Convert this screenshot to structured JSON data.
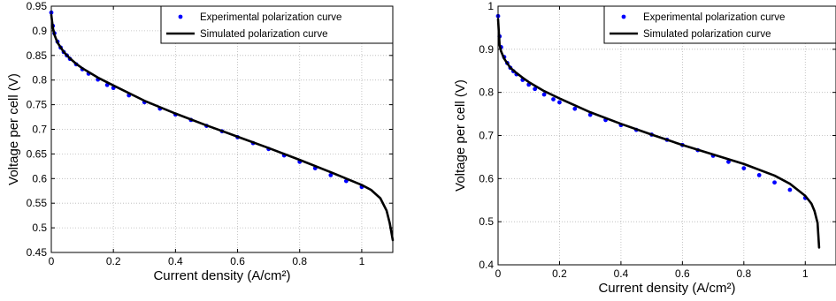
{
  "chart_data": [
    {
      "type": "line",
      "xlabel": "Current density (A/cm²)",
      "ylabel": "Voltage per cell (V)",
      "xlim": [
        0,
        1.1
      ],
      "ylim": [
        0.45,
        0.95
      ],
      "x_ticks": [
        0,
        0.2,
        0.4,
        0.6,
        0.8,
        1
      ],
      "x_tick_labels": [
        "0",
        "0.2",
        "0.4",
        "0.6",
        "0.8",
        "1"
      ],
      "y_ticks": [
        0.45,
        0.5,
        0.55,
        0.6,
        0.65,
        0.7,
        0.75,
        0.8,
        0.85,
        0.9,
        0.95
      ],
      "y_tick_labels": [
        "0.45",
        "0.5",
        "0.55",
        "0.6",
        "0.65",
        "0.7",
        "0.75",
        "0.8",
        "0.85",
        "0.9",
        "0.95"
      ],
      "grid": true,
      "legend_position": "top-right",
      "series": [
        {
          "name": "Experimental polarization curve",
          "style": "markers",
          "color": "#0000ff",
          "x": [
            0,
            0.005,
            0.01,
            0.02,
            0.03,
            0.04,
            0.05,
            0.06,
            0.08,
            0.1,
            0.12,
            0.15,
            0.18,
            0.2,
            0.25,
            0.3,
            0.35,
            0.4,
            0.45,
            0.5,
            0.55,
            0.6,
            0.65,
            0.7,
            0.75,
            0.8,
            0.85,
            0.9,
            0.95,
            1.0
          ],
          "y": [
            0.937,
            0.91,
            0.895,
            0.878,
            0.866,
            0.857,
            0.85,
            0.843,
            0.832,
            0.822,
            0.813,
            0.801,
            0.79,
            0.784,
            0.769,
            0.755,
            0.742,
            0.73,
            0.719,
            0.707,
            0.696,
            0.684,
            0.672,
            0.66,
            0.647,
            0.634,
            0.621,
            0.607,
            0.595,
            0.583
          ]
        },
        {
          "name": "Simulated polarization curve",
          "style": "line",
          "color": "#000000",
          "x": [
            0,
            0.005,
            0.01,
            0.02,
            0.04,
            0.06,
            0.08,
            0.1,
            0.15,
            0.2,
            0.3,
            0.4,
            0.5,
            0.6,
            0.7,
            0.8,
            0.9,
            0.95,
            1.0,
            1.03,
            1.06,
            1.08,
            1.09,
            1.1
          ],
          "y": [
            0.932,
            0.906,
            0.892,
            0.876,
            0.857,
            0.844,
            0.833,
            0.824,
            0.805,
            0.789,
            0.758,
            0.732,
            0.708,
            0.685,
            0.662,
            0.638,
            0.613,
            0.6,
            0.587,
            0.577,
            0.56,
            0.535,
            0.51,
            0.475
          ]
        }
      ]
    },
    {
      "type": "line",
      "xlabel": "Current density (A/cm²)",
      "ylabel": "Voltage per cell (V)",
      "xlim": [
        0,
        1.1
      ],
      "ylim": [
        0.4,
        1.0
      ],
      "x_ticks": [
        0,
        0.2,
        0.4,
        0.6,
        0.8,
        1
      ],
      "x_tick_labels": [
        "0",
        "0.2",
        "0.4",
        "0.6",
        "0.8",
        "1"
      ],
      "y_ticks": [
        0.4,
        0.5,
        0.6,
        0.7,
        0.8,
        0.9,
        1.0
      ],
      "y_tick_labels": [
        "0.4",
        "0.5",
        "0.6",
        "0.7",
        "0.8",
        "0.9",
        "1"
      ],
      "grid": true,
      "legend_position": "top-right",
      "series": [
        {
          "name": "Experimental polarization curve",
          "style": "markers",
          "color": "#0000ff",
          "x": [
            0,
            0.005,
            0.01,
            0.02,
            0.03,
            0.04,
            0.05,
            0.06,
            0.08,
            0.1,
            0.12,
            0.15,
            0.18,
            0.2,
            0.25,
            0.3,
            0.35,
            0.4,
            0.45,
            0.5,
            0.55,
            0.6,
            0.65,
            0.7,
            0.75,
            0.8,
            0.85,
            0.9,
            0.95,
            1.0
          ],
          "y": [
            0.977,
            0.93,
            0.905,
            0.882,
            0.868,
            0.857,
            0.849,
            0.842,
            0.829,
            0.818,
            0.808,
            0.795,
            0.784,
            0.777,
            0.762,
            0.748,
            0.736,
            0.724,
            0.713,
            0.702,
            0.69,
            0.678,
            0.666,
            0.653,
            0.639,
            0.624,
            0.608,
            0.591,
            0.574,
            0.555
          ]
        },
        {
          "name": "Simulated polarization curve",
          "style": "line",
          "color": "#000000",
          "x": [
            0,
            0.005,
            0.01,
            0.02,
            0.04,
            0.06,
            0.08,
            0.1,
            0.15,
            0.2,
            0.3,
            0.4,
            0.5,
            0.6,
            0.7,
            0.8,
            0.9,
            0.95,
            1.0,
            1.02,
            1.03,
            1.04,
            1.045
          ],
          "y": [
            0.97,
            0.91,
            0.895,
            0.878,
            0.857,
            0.845,
            0.834,
            0.824,
            0.803,
            0.786,
            0.754,
            0.727,
            0.702,
            0.678,
            0.656,
            0.634,
            0.607,
            0.588,
            0.56,
            0.542,
            0.525,
            0.497,
            0.44
          ]
        }
      ]
    }
  ]
}
